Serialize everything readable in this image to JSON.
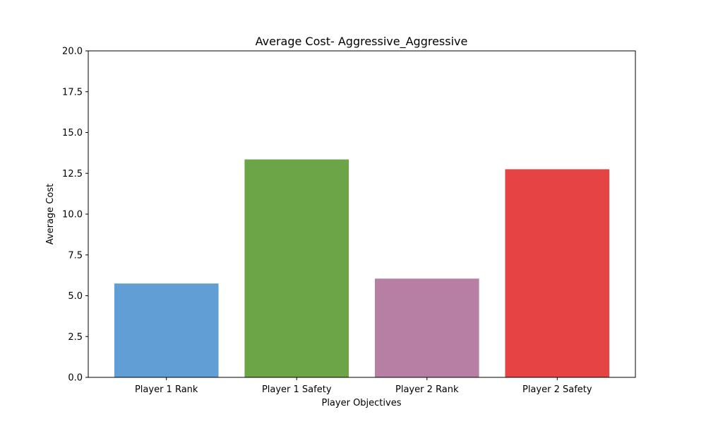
{
  "chart_data": {
    "type": "bar",
    "title": "Average Cost- Aggressive_Aggressive",
    "xlabel": "Player Objectives",
    "ylabel": "Average Cost",
    "categories": [
      "Player 1 Rank",
      "Player 1 Safety",
      "Player 2 Rank",
      "Player 2 Safety"
    ],
    "values": [
      5.75,
      13.35,
      6.05,
      12.75
    ],
    "colors": [
      "#619ed6",
      "#6ba547",
      "#b77fa3",
      "#e64345"
    ],
    "ylim": [
      0,
      20
    ],
    "yticks": [
      0,
      2.5,
      5,
      7.5,
      10,
      12.5,
      15,
      17.5,
      20
    ],
    "ytick_labels": [
      "0.0",
      "2.5",
      "5.0",
      "7.5",
      "10.0",
      "12.5",
      "15.0",
      "17.5",
      "20.0"
    ],
    "grid": false,
    "legend": "none"
  }
}
